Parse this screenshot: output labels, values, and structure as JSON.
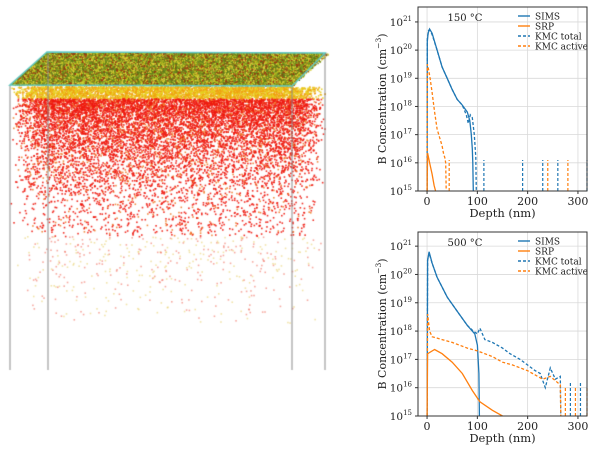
{
  "colors": {
    "blue": "#1f77b4",
    "orange": "#ff7f0e",
    "grid": "#d9d9d9"
  },
  "chart_data": [
    {
      "type": "line",
      "title": "150 °C",
      "xlabel": "Depth (nm)",
      "ylabel": "B Concentration (cm",
      "ylabel_sup": "−3",
      "ylabel_close": ")",
      "yscale": "log",
      "xlim": [
        -18,
        318
      ],
      "ylim_log10": [
        15,
        21.53
      ],
      "xticks": [
        "0",
        "100",
        "200",
        "300"
      ],
      "xtick_values": [
        0,
        100,
        200,
        300
      ],
      "yticks": [
        "15",
        "16",
        "17",
        "18",
        "19",
        "20",
        "21"
      ],
      "legend": [
        "SIMS",
        "SRP",
        "KMC total",
        "KMC active"
      ],
      "legend_placement": "top-right",
      "series": [
        {
          "name": "SIMS",
          "color": "blue",
          "dash": false,
          "x": [
            0,
            0.5,
            2,
            5,
            10,
            20,
            30,
            40,
            50,
            60,
            70,
            80,
            85,
            88,
            90,
            91,
            92
          ],
          "log10y": [
            15,
            20.3,
            20.6,
            20.75,
            20.6,
            20.0,
            19.4,
            19.0,
            18.6,
            18.25,
            18.05,
            17.8,
            17.5,
            17.0,
            16.5,
            16.0,
            15
          ],
          "spikes": []
        },
        {
          "name": "SRP",
          "color": "orange",
          "dash": false,
          "x": [
            0,
            1,
            5,
            10,
            14,
            17
          ],
          "log10y": [
            15,
            16.35,
            16.0,
            15.6,
            15.2,
            15
          ],
          "spikes": []
        },
        {
          "name": "KMC total",
          "color": "blue",
          "dash": true,
          "x": [
            0,
            0.5,
            3,
            6,
            10,
            20,
            30,
            40,
            50,
            60,
            70,
            78,
            82,
            86,
            90,
            94,
            97,
            98
          ],
          "log10y": [
            15,
            20.4,
            20.7,
            20.7,
            20.55,
            20.0,
            19.4,
            19.0,
            18.6,
            18.25,
            18.05,
            17.7,
            17.4,
            17.7,
            17.6,
            17.0,
            16.2,
            15
          ],
          "spikes": [
            113,
            190,
            230,
            260,
            318
          ],
          "spike_level": 16.1
        },
        {
          "name": "KMC active",
          "color": "orange",
          "dash": true,
          "x": [
            0,
            0.5,
            3,
            6,
            10,
            15,
            20,
            25,
            30,
            33,
            35,
            37,
            38
          ],
          "log10y": [
            15,
            19.5,
            19.3,
            19.0,
            18.5,
            17.8,
            17.2,
            16.9,
            16.6,
            16.3,
            16.2,
            16.0,
            15
          ],
          "spikes": [
            44,
            240,
            280
          ],
          "spike_level": 16.1
        }
      ]
    },
    {
      "type": "line",
      "title": "500 °C",
      "xlabel": "Depth (nm)",
      "ylabel": "B Concentration (cm",
      "ylabel_sup": "−3",
      "ylabel_close": ")",
      "yscale": "log",
      "xlim": [
        -18,
        318
      ],
      "ylim_log10": [
        15,
        21.5
      ],
      "xticks": [
        "0",
        "100",
        "200",
        "300"
      ],
      "xtick_values": [
        0,
        100,
        200,
        300
      ],
      "yticks": [
        "15",
        "16",
        "17",
        "18",
        "19",
        "20",
        "21"
      ],
      "legend": [
        "SIMS",
        "SRP",
        "KMC total",
        "KMC active"
      ],
      "legend_placement": "top-right",
      "series": [
        {
          "name": "SIMS",
          "color": "blue",
          "dash": false,
          "x": [
            0,
            1,
            4,
            10,
            20,
            40,
            60,
            80,
            95,
            100,
            103,
            104
          ],
          "log10y": [
            15,
            20.5,
            20.8,
            20.4,
            19.9,
            19.2,
            18.7,
            18.2,
            17.9,
            17.5,
            16.5,
            15
          ],
          "spikes": []
        },
        {
          "name": "SRP",
          "color": "orange",
          "dash": false,
          "x": [
            0,
            1,
            15,
            30,
            50,
            70,
            90,
            105,
            130,
            150
          ],
          "log10y": [
            15,
            17.2,
            17.35,
            17.2,
            16.9,
            16.5,
            15.9,
            15.5,
            15.2,
            15.0
          ],
          "spikes": []
        },
        {
          "name": "KMC total",
          "color": "blue",
          "dash": true,
          "x": [
            0,
            1,
            4,
            10,
            20,
            40,
            60,
            80,
            92,
            100,
            105,
            115,
            130,
            150,
            165,
            175,
            185,
            200,
            215,
            225,
            235,
            245,
            255,
            265,
            266
          ],
          "log10y": [
            15,
            20.5,
            20.75,
            20.4,
            19.9,
            19.2,
            18.7,
            18.2,
            18.0,
            17.9,
            18.1,
            17.7,
            17.6,
            17.4,
            17.2,
            17.1,
            17.0,
            16.8,
            16.6,
            16.5,
            16.0,
            16.7,
            16.3,
            16.4,
            15
          ],
          "spikes": [
            285,
            305
          ],
          "spike_level": 16.2
        },
        {
          "name": "KMC active",
          "color": "orange",
          "dash": true,
          "x": [
            0,
            1,
            5,
            10,
            30,
            50,
            80,
            100,
            130,
            150,
            170,
            200,
            230,
            245,
            265,
            266
          ],
          "log10y": [
            15,
            18.6,
            18.0,
            17.8,
            17.7,
            17.6,
            17.4,
            17.3,
            17.1,
            16.9,
            16.8,
            16.6,
            16.3,
            16.4,
            16.1,
            15
          ],
          "spikes": [
            275,
            295,
            318
          ],
          "spike_level": 16.0
        }
      ]
    }
  ]
}
